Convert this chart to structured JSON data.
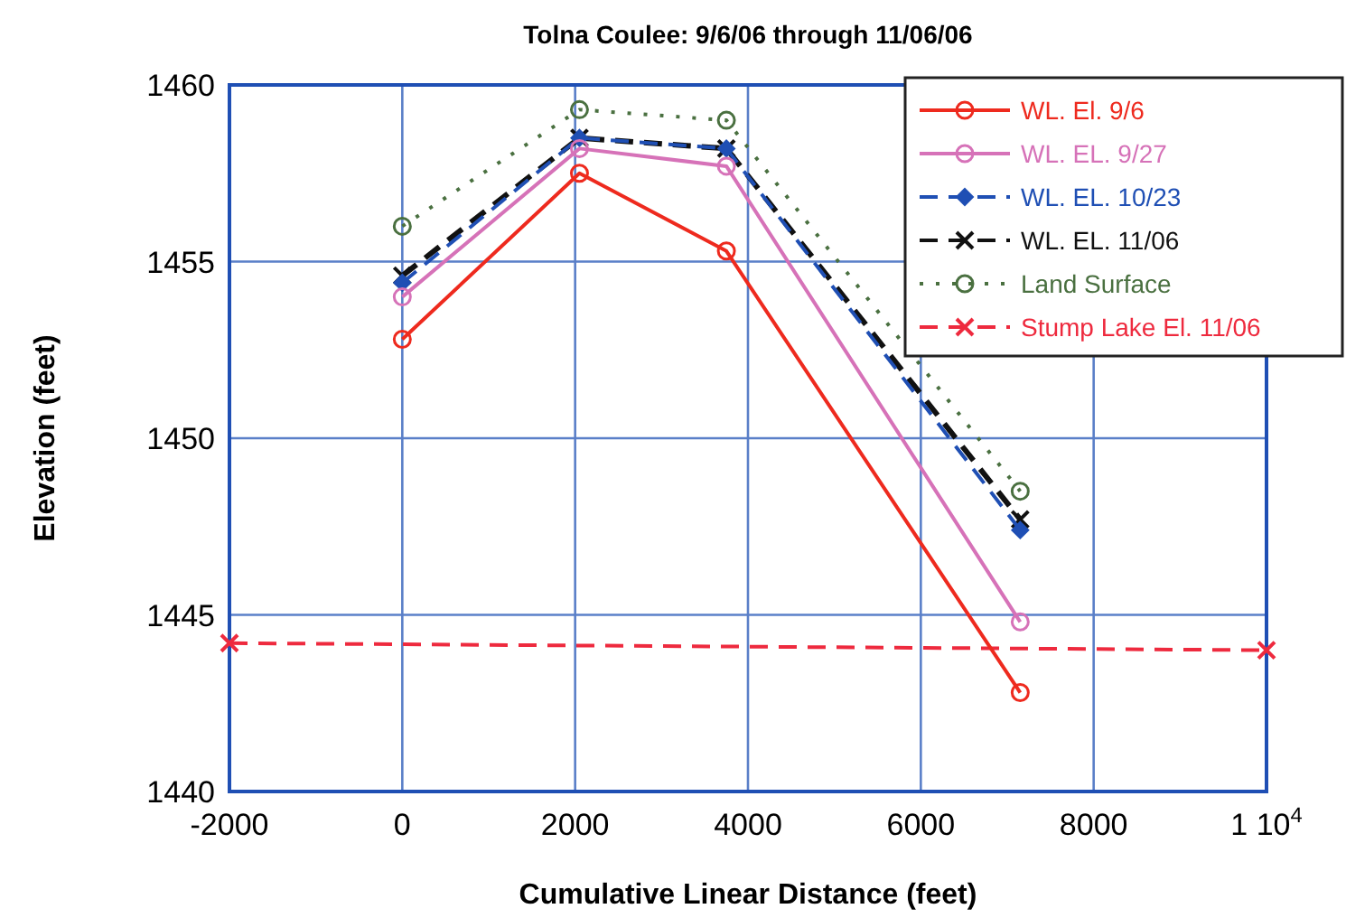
{
  "chart_data": {
    "type": "line",
    "title": "Tolna Coulee:  9/6/06 through 11/06/06",
    "xlabel": "Cumulative Linear Distance (feet)",
    "ylabel": "Elevation (feet)",
    "x": [
      0,
      2050,
      3750,
      7150
    ],
    "series": [
      {
        "name": "WL. El. 9/6",
        "color": "#ee2a1e",
        "values": [
          1452.8,
          1457.5,
          1455.3,
          1442.8
        ],
        "marker": "circle",
        "line_style": "solid"
      },
      {
        "name": "WL. EL. 9/27",
        "color": "#d672b8",
        "values": [
          1454.0,
          1458.2,
          1457.7,
          1444.8
        ],
        "marker": "circle",
        "line_style": "solid"
      },
      {
        "name": "WL. EL. 10/23",
        "color": "#1f4fb4",
        "values": [
          1454.4,
          1458.5,
          1458.2,
          1447.4
        ],
        "marker": "diamond",
        "line_style": "dashed"
      },
      {
        "name": "WL. EL. 11/06",
        "color": "#111111",
        "values": [
          1454.6,
          1458.5,
          1458.2,
          1447.7
        ],
        "marker": "cross",
        "line_style": "dashed"
      },
      {
        "name": "Land Surface",
        "color": "#4a7040",
        "values": [
          1456.0,
          1459.3,
          1459.0,
          1448.5
        ],
        "marker": "circle",
        "line_style": "dotted"
      },
      {
        "name": "Stump Lake El. 11/06",
        "color": "#ee2a3e",
        "x": [
          -2000,
          10000
        ],
        "values": [
          1444.2,
          1444.0
        ],
        "marker": "cross",
        "line_style": "dashed"
      }
    ],
    "xlim": [
      -2000,
      10000
    ],
    "xticks": [
      -2000,
      0,
      2000,
      4000,
      6000,
      8000,
      {
        "value": 10000,
        "label": "1 10$^{4}$"
      }
    ],
    "ylim": [
      1440,
      1460
    ],
    "yticks": [
      1440,
      1445,
      1450,
      1455,
      1460
    ],
    "grid": true,
    "legend": "top right"
  }
}
